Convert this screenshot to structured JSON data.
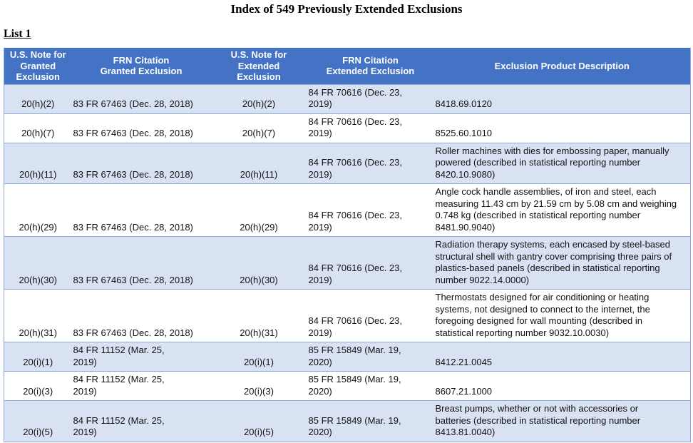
{
  "page": {
    "title": "Index of 549 Previously Extended Exclusions",
    "list_label": "List 1"
  },
  "colors": {
    "header_bg": "#4472C4",
    "header_text": "#FFFFFF",
    "band_bg": "#D9E2F3",
    "border": "#8EAADB",
    "text": "#111111"
  },
  "table": {
    "columns": [
      {
        "id": "note_granted",
        "label": "U.S. Note for\nGranted\nExclusion"
      },
      {
        "id": "frn_granted",
        "label": "FRN Citation\nGranted Exclusion"
      },
      {
        "id": "note_extended",
        "label": "U.S. Note for\nExtended\nExclusion"
      },
      {
        "id": "frn_extended",
        "label": "FRN Citation\nExtended Exclusion"
      },
      {
        "id": "description",
        "label": "Exclusion Product Description"
      }
    ],
    "rows": [
      {
        "note_granted": "20(h)(2)",
        "frn_granted": "83 FR 67463 (Dec. 28, 2018)",
        "note_extended": "20(h)(2)",
        "frn_extended": "84 FR 70616 (Dec. 23,\n2019)",
        "description": "8418.69.0120"
      },
      {
        "note_granted": "20(h)(7)",
        "frn_granted": "83 FR 67463 (Dec. 28, 2018)",
        "note_extended": "20(h)(7)",
        "frn_extended": "84 FR 70616 (Dec. 23,\n2019)",
        "description": "8525.60.1010"
      },
      {
        "note_granted": "20(h)(11)",
        "frn_granted": "83 FR 67463 (Dec. 28, 2018)",
        "note_extended": "20(h)(11)",
        "frn_extended": "84 FR 70616 (Dec. 23,\n2019)",
        "description": "Roller machines with dies for embossing paper, manually\npowered (described in statistical reporting number\n8420.10.9080)"
      },
      {
        "note_granted": "20(h)(29)",
        "frn_granted": "83 FR 67463 (Dec. 28, 2018)",
        "note_extended": "20(h)(29)",
        "frn_extended": "84 FR 70616 (Dec. 23,\n2019)",
        "description": "Angle cock handle assemblies, of iron and steel, each\nmeasuring 11.43 cm by 21.59 cm by 5.08 cm and weighing\n0.748 kg (described in statistical reporting number\n8481.90.9040)"
      },
      {
        "note_granted": "20(h)(30)",
        "frn_granted": "83 FR 67463 (Dec. 28, 2018)",
        "note_extended": "20(h)(30)",
        "frn_extended": "84 FR 70616 (Dec. 23,\n2019)",
        "description": "Radiation therapy systems, each encased by steel-based\nstructural shell with gantry cover comprising three pairs of\nplastics-based panels (described in statistical reporting\nnumber 9022.14.0000)"
      },
      {
        "note_granted": "20(h)(31)",
        "frn_granted": "83 FR 67463 (Dec. 28, 2018)",
        "note_extended": "20(h)(31)",
        "frn_extended": "84 FR 70616 (Dec. 23,\n2019)",
        "description": "Thermostats designed for air conditioning or heating\nsystems, not designed to connect to the internet, the\nforegoing designed for wall mounting (described in\nstatistical reporting number 9032.10.0030)"
      },
      {
        "note_granted": "20(i)(1)",
        "frn_granted": "84 FR 11152 (Mar. 25,\n2019)",
        "note_extended": "20(i)(1)",
        "frn_extended": "85 FR 15849 (Mar. 19,\n2020)",
        "description": "8412.21.0045"
      },
      {
        "note_granted": "20(i)(3)",
        "frn_granted": "84 FR 11152 (Mar. 25,\n2019)",
        "note_extended": "20(i)(3)",
        "frn_extended": "85 FR 15849 (Mar. 19,\n2020)",
        "description": "8607.21.1000"
      },
      {
        "note_granted": "20(i)(5)",
        "frn_granted": "84 FR 11152 (Mar. 25,\n2019)",
        "note_extended": "20(i)(5)",
        "frn_extended": "85 FR 15849 (Mar. 19,\n2020)",
        "description": "Breast pumps, whether or not with accessories or\nbatteries (described in statistical reporting number\n8413.81.0040)"
      }
    ]
  }
}
